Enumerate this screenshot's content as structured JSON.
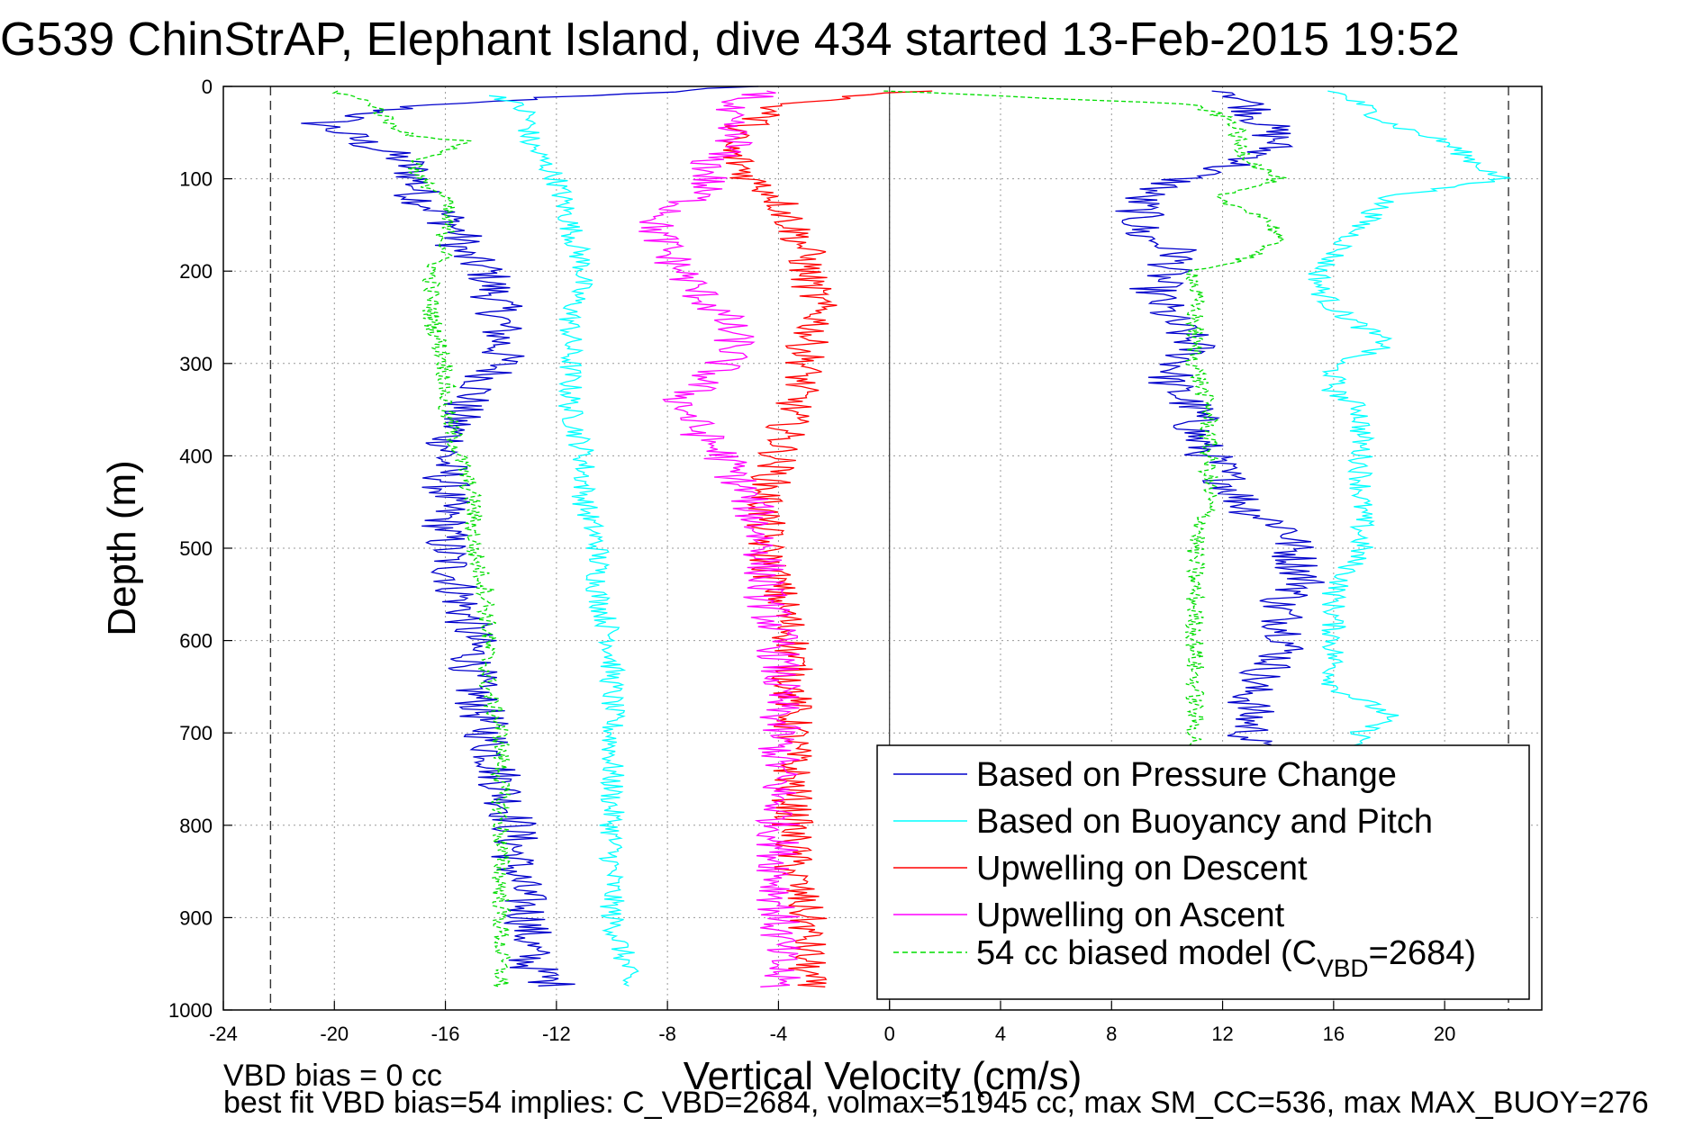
{
  "figure": {
    "title": "G539 ChinStrAP, Elephant Island, dive 434 started 13-Feb-2015 19:52",
    "footnote_line1": "VBD bias = 0 cc",
    "footnote_line2": "best fit VBD bias=54 implies: C_VBD=2684, volmax=51945 cc, max SM_CC=536, max MAX_BUOY=276"
  },
  "colors": {
    "pressure": "#0000cc",
    "buoyancy": "#00ffff",
    "descent": "#ff0000",
    "ascent": "#ff00ff",
    "model": "#00dd00",
    "grid": "#9a9a9a",
    "axes": "#000000"
  },
  "chart_data": {
    "type": "line",
    "title": "G539 ChinStrAP, Elephant Island, dive 434 started 13-Feb-2015 19:52",
    "xlabel": "Vertical Velocity (cm/s)",
    "ylabel": "Depth (m)",
    "xlim": [
      -24,
      23.5
    ],
    "ylim": [
      1000,
      0
    ],
    "y_reversed": true,
    "grid": true,
    "legend_position": "lower-right",
    "x_ticks": [
      -24,
      -20,
      -16,
      -12,
      -8,
      -4,
      0,
      4,
      8,
      12,
      16,
      20
    ],
    "y_ticks": [
      0,
      100,
      200,
      300,
      400,
      500,
      600,
      700,
      800,
      900,
      1000
    ],
    "reference_lines": [
      {
        "axis": "x",
        "value": -22.3,
        "style": "dashed"
      },
      {
        "axis": "x",
        "value": 22.3,
        "style": "dashed"
      },
      {
        "axis": "x",
        "value": 0,
        "style": "solid"
      }
    ],
    "series": [
      {
        "name": "Based on Pressure Change",
        "color": "#0000cc",
        "style": "solid",
        "descent": {
          "depth": [
            0,
            20,
            40,
            60,
            80,
            100,
            120,
            140,
            160,
            180,
            200,
            250,
            300,
            350,
            400,
            450,
            500,
            550,
            600,
            650,
            700,
            750,
            800,
            850,
            900,
            950,
            975
          ],
          "velocity": [
            -5,
            -17,
            -20.5,
            -19,
            -17.5,
            -17,
            -17,
            -16,
            -15.5,
            -15.5,
            -14.5,
            -14,
            -14,
            -15.5,
            -16,
            -16,
            -16,
            -15.5,
            -15,
            -15,
            -14.5,
            -14,
            -13.5,
            -13.5,
            -13,
            -13,
            -12
          ]
        },
        "ascent": {
          "depth": [
            975,
            950,
            900,
            850,
            800,
            750,
            720,
            700,
            650,
            620,
            600,
            560,
            540,
            500,
            480,
            460,
            420,
            400,
            380,
            350,
            320,
            300,
            280,
            250,
            220,
            200,
            180,
            160,
            140,
            120,
            100,
            80,
            60,
            40,
            20,
            5
          ],
          "velocity": [
            12,
            12,
            12,
            12,
            12,
            12,
            13,
            13,
            13,
            14,
            14.5,
            14,
            15,
            14.5,
            14.5,
            13,
            12,
            11.5,
            11,
            11,
            10,
            10.5,
            11,
            10,
            9.5,
            10,
            10.5,
            9,
            9,
            9,
            10.5,
            13,
            14,
            13.5,
            13,
            12.5
          ]
        }
      },
      {
        "name": "Based on Buoyancy and Pitch",
        "color": "#00ffff",
        "style": "solid",
        "descent": {
          "depth": [
            10,
            30,
            60,
            80,
            100,
            150,
            200,
            250,
            300,
            350,
            400,
            450,
            500,
            550,
            600,
            650,
            700,
            750,
            800,
            850,
            900,
            950,
            975
          ],
          "velocity": [
            -14,
            -13,
            -13,
            -12.5,
            -12,
            -11.5,
            -11,
            -11.5,
            -11.5,
            -11.5,
            -11,
            -11,
            -10.5,
            -10.5,
            -10,
            -10,
            -10,
            -10,
            -10,
            -10,
            -10,
            -9.5,
            -9.5
          ]
        },
        "ascent": {
          "depth": [
            975,
            900,
            800,
            700,
            680,
            650,
            600,
            550,
            500,
            450,
            400,
            350,
            330,
            300,
            280,
            260,
            240,
            220,
            200,
            150,
            120,
            100,
            80,
            60,
            40,
            20,
            5
          ],
          "velocity": [
            17,
            17,
            17,
            17,
            18,
            16,
            16,
            16,
            17,
            17,
            17,
            17,
            16,
            16,
            18,
            17,
            16,
            15.5,
            15.5,
            17,
            18,
            22,
            21,
            20,
            18,
            17,
            16
          ]
        }
      },
      {
        "name": "Upwelling on Descent",
        "color": "#ff0000",
        "style": "solid",
        "depth": [
          5,
          20,
          40,
          60,
          80,
          100,
          120,
          150,
          180,
          200,
          250,
          280,
          300,
          350,
          400,
          450,
          500,
          550,
          600,
          650,
          700,
          750,
          800,
          850,
          900,
          950,
          975
        ],
        "velocity": [
          1,
          -4,
          -5,
          -6,
          -5.5,
          -5,
          -4,
          -3.5,
          -3,
          -3,
          -2.5,
          -3,
          -3,
          -3.5,
          -4,
          -4.5,
          -4.5,
          -4,
          -3.5,
          -3.5,
          -3.5,
          -3.5,
          -3.5,
          -3.5,
          -3,
          -3,
          -3
        ]
      },
      {
        "name": "Upwelling on Ascent",
        "color": "#ff00ff",
        "style": "solid",
        "depth": [
          975,
          950,
          900,
          850,
          800,
          750,
          700,
          650,
          600,
          550,
          500,
          450,
          400,
          370,
          340,
          300,
          280,
          250,
          220,
          200,
          180,
          150,
          120,
          100,
          80,
          60,
          40,
          20,
          5
        ],
        "velocity": [
          -4,
          -4,
          -4,
          -4,
          -4,
          -4,
          -4,
          -4,
          -4,
          -4.5,
          -4.5,
          -5,
          -6,
          -7,
          -7.5,
          -6,
          -5.5,
          -6,
          -7,
          -7.5,
          -8,
          -8.5,
          -7,
          -6.5,
          -6.5,
          -5.5,
          -6,
          -6,
          -4
        ]
      },
      {
        "name": "54 cc biased model (C_VBD=2684)",
        "color": "#00dd00",
        "style": "dashed",
        "descent": {
          "depth": [
            5,
            20,
            40,
            55,
            60,
            80,
            100,
            120,
            150,
            180,
            200,
            250,
            300,
            350,
            400,
            450,
            500,
            550,
            600,
            650,
            700,
            750,
            800,
            850,
            900,
            950,
            975
          ],
          "velocity": [
            -20,
            -18.5,
            -18,
            -17,
            -15,
            -17,
            -17,
            -16,
            -16,
            -16,
            -16.5,
            -16.5,
            -16,
            -16,
            -15.5,
            -15,
            -15,
            -14.5,
            -14.5,
            -14.5,
            -14,
            -14,
            -14,
            -14,
            -14,
            -14,
            -14
          ]
        },
        "ascent": {
          "depth": [
            975,
            900,
            850,
            800,
            750,
            700,
            650,
            600,
            550,
            500,
            450,
            400,
            350,
            300,
            250,
            200,
            180,
            160,
            140,
            120,
            100,
            80,
            60,
            40,
            20,
            5
          ],
          "velocity": [
            11,
            11,
            11,
            11,
            11,
            11,
            11,
            11,
            11,
            11,
            11.5,
            11.5,
            11.5,
            11,
            11,
            11,
            13.5,
            14,
            13.5,
            11.5,
            14,
            13,
            12.5,
            12.5,
            11,
            0
          ]
        }
      }
    ],
    "legend": {
      "entries": [
        {
          "label": "Based on Pressure Change",
          "color": "#0000cc",
          "style": "solid"
        },
        {
          "label": "Based on Buoyancy and Pitch",
          "color": "#00ffff",
          "style": "solid"
        },
        {
          "label": "Upwelling on Descent",
          "color": "#ff0000",
          "style": "solid"
        },
        {
          "label": "Upwelling on Ascent",
          "color": "#ff00ff",
          "style": "solid"
        },
        {
          "label": "54 cc biased model (C",
          "color": "#00dd00",
          "style": "dashed",
          "sub": "VBD",
          "suffix": "=2684)"
        }
      ]
    }
  }
}
